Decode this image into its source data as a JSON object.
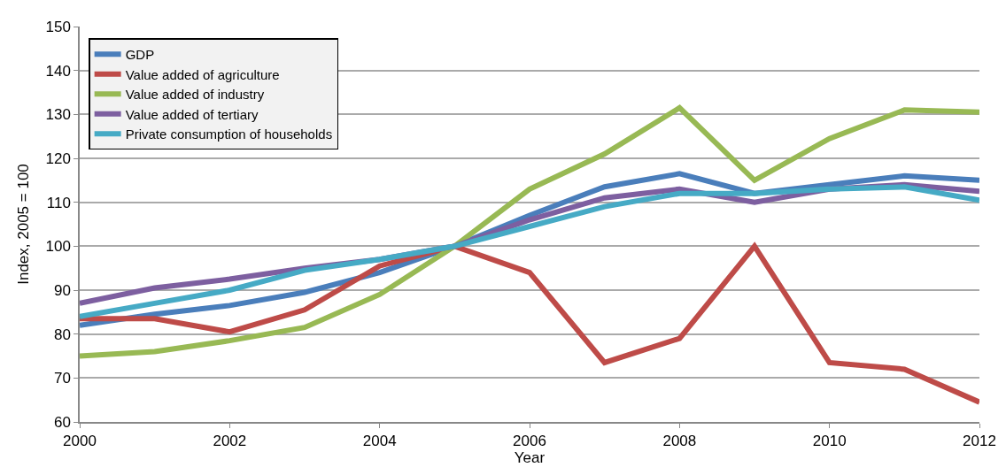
{
  "chart_data": {
    "type": "line",
    "xlabel": "Year",
    "ylabel": "Index, 2005 = 100",
    "x": [
      2000,
      2001,
      2002,
      2003,
      2004,
      2005,
      2006,
      2007,
      2008,
      2009,
      2010,
      2011,
      2012
    ],
    "xlim": [
      2000,
      2012
    ],
    "xticks": [
      2000,
      2002,
      2004,
      2006,
      2008,
      2010,
      2012
    ],
    "ylim": [
      60,
      150
    ],
    "yticks": [
      60,
      70,
      80,
      90,
      100,
      110,
      120,
      130,
      140,
      150
    ],
    "grid": "y",
    "legend": "top left",
    "marker": "none",
    "line_style": "solid",
    "series": [
      {
        "name": "GDP",
        "color": "#4a7ebb",
        "values": [
          82,
          84.5,
          86.5,
          89.5,
          94,
          100,
          107,
          113.5,
          116.5,
          112,
          114,
          116,
          115
        ]
      },
      {
        "name": "Value added of agriculture",
        "color": "#be4b48",
        "values": [
          83.5,
          83.5,
          80.5,
          85.5,
          95.5,
          100,
          94,
          73.5,
          79,
          100,
          73.5,
          72,
          64.5
        ]
      },
      {
        "name": "Value added of industry",
        "color": "#98b954",
        "values": [
          75,
          76,
          78.5,
          81.5,
          89,
          100,
          113,
          121,
          131.5,
          115,
          124.5,
          131,
          130.5
        ]
      },
      {
        "name": "Value added of tertiary",
        "color": "#7d5fa0",
        "values": [
          87,
          90.5,
          92.5,
          95,
          97,
          100,
          106,
          111,
          113,
          110,
          113,
          114,
          112.5
        ]
      },
      {
        "name": "Private consumption of households",
        "color": "#46aac5",
        "values": [
          84,
          87,
          90,
          94.5,
          97,
          100,
          104.5,
          109,
          112,
          112,
          113,
          113.5,
          110.5
        ]
      }
    ]
  }
}
